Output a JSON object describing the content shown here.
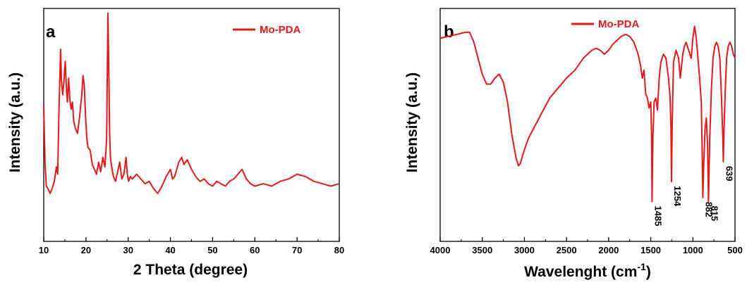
{
  "chart_data": [
    {
      "type": "line",
      "panel": "a",
      "xlabel": "2 Theta (degree)",
      "ylabel": "Intensity (a.u.)",
      "xlim": [
        10,
        80
      ],
      "ylim": [
        0,
        100
      ],
      "xticks": [
        "10",
        "20",
        "30",
        "40",
        "50",
        "60",
        "70",
        "80"
      ],
      "grid": false,
      "legend_position": "top-right",
      "series": [
        {
          "name": "Mo-PDA",
          "color": "#e31a1c",
          "x": [
            10,
            10.3,
            10.6,
            11,
            11.5,
            12,
            12.5,
            13,
            13.3,
            13.6,
            14,
            14.2,
            14.5,
            14.8,
            15.1,
            15.4,
            15.6,
            15.9,
            16.2,
            16.5,
            16.8,
            17.1,
            17.5,
            18,
            18.5,
            19,
            19.3,
            19.6,
            19.9,
            20.2,
            20.5,
            21,
            21.5,
            22,
            22.5,
            23,
            23.5,
            24,
            24.5,
            24.9,
            25.2,
            25.4,
            25.6,
            25.8,
            26.1,
            26.5,
            27,
            27.5,
            28,
            28.5,
            29,
            29.5,
            29.8,
            30.1,
            30.5,
            31,
            32,
            33,
            34,
            35,
            36,
            37,
            38,
            39,
            40,
            40.5,
            41,
            42,
            42.7,
            43.2,
            44,
            45,
            46,
            47,
            48,
            49,
            50,
            51,
            52,
            53,
            54,
            55,
            56,
            57,
            58,
            59,
            60,
            62,
            64,
            66,
            68,
            70,
            72,
            74,
            76,
            78,
            80
          ],
          "y": [
            62,
            38,
            28,
            27,
            25,
            27,
            30,
            36,
            33,
            58,
            85,
            72,
            66,
            72,
            80,
            68,
            63,
            73,
            64,
            60,
            63,
            55,
            52,
            50,
            57,
            66,
            74,
            70,
            57,
            48,
            44,
            43,
            37,
            35,
            33,
            38,
            34,
            40,
            36,
            48,
            100,
            78,
            50,
            40,
            36,
            32,
            30,
            34,
            38,
            31,
            33,
            40,
            33,
            30,
            32,
            31,
            33,
            31,
            29,
            30,
            27,
            25,
            28,
            32,
            35,
            31,
            32,
            38,
            40,
            37,
            39,
            35,
            32,
            30,
            31,
            29,
            28,
            30,
            29,
            28,
            30,
            31,
            33,
            35,
            31,
            29,
            28,
            29,
            28,
            30,
            31,
            33,
            32,
            30,
            29,
            28,
            29
          ]
        }
      ]
    },
    {
      "type": "line",
      "panel": "b",
      "xlabel": "Wavelenght (cm",
      "xlabel_sup": "-1",
      "xlabel_end": ")",
      "ylabel": "Intensity (a.u.)",
      "xlim": [
        4000,
        500
      ],
      "ylim": [
        0,
        100
      ],
      "xticks": [
        "4000",
        "3500",
        "3000",
        "2500",
        "2000",
        "1500",
        "1000",
        "500"
      ],
      "grid": false,
      "legend_position": "top-center",
      "annotations": [
        "1485",
        "1254",
        "882",
        "815",
        "639"
      ],
      "series": [
        {
          "name": "Mo-PDA",
          "color": "#e31a1c",
          "x": [
            4000,
            3900,
            3800,
            3700,
            3650,
            3600,
            3550,
            3500,
            3450,
            3400,
            3350,
            3300,
            3250,
            3200,
            3150,
            3100,
            3070,
            3050,
            3000,
            2950,
            2900,
            2850,
            2800,
            2750,
            2700,
            2600,
            2500,
            2400,
            2300,
            2200,
            2150,
            2100,
            2050,
            2000,
            1950,
            1900,
            1850,
            1800,
            1750,
            1700,
            1650,
            1620,
            1600,
            1580,
            1560,
            1540,
            1520,
            1500,
            1490,
            1485,
            1475,
            1460,
            1440,
            1420,
            1400,
            1380,
            1350,
            1320,
            1290,
            1270,
            1260,
            1254,
            1245,
            1230,
            1200,
            1170,
            1150,
            1120,
            1100,
            1080,
            1050,
            1020,
            1000,
            980,
            960,
            940,
            920,
            900,
            890,
            882,
            870,
            855,
            840,
            825,
            815,
            800,
            780,
            760,
            740,
            720,
            700,
            680,
            660,
            645,
            639,
            630,
            615,
            600,
            580,
            560,
            540,
            520,
            500
          ],
          "y": [
            90,
            91,
            92,
            93,
            93,
            88,
            80,
            72,
            67,
            67,
            70,
            72,
            68,
            58,
            42,
            30,
            26,
            27,
            34,
            40,
            44,
            48,
            52,
            56,
            60,
            65,
            70,
            74,
            80,
            84,
            85,
            84,
            82,
            84,
            87,
            89,
            91,
            92,
            91,
            88,
            82,
            76,
            70,
            74,
            62,
            60,
            55,
            58,
            40,
            8,
            40,
            58,
            60,
            54,
            70,
            78,
            82,
            80,
            70,
            60,
            45,
            18,
            48,
            78,
            84,
            80,
            70,
            82,
            86,
            88,
            84,
            80,
            90,
            96,
            90,
            80,
            70,
            58,
            35,
            10,
            28,
            45,
            50,
            35,
            8,
            40,
            65,
            80,
            86,
            88,
            86,
            80,
            60,
            40,
            28,
            45,
            65,
            80,
            86,
            88,
            86,
            82,
            80
          ]
        }
      ]
    }
  ]
}
